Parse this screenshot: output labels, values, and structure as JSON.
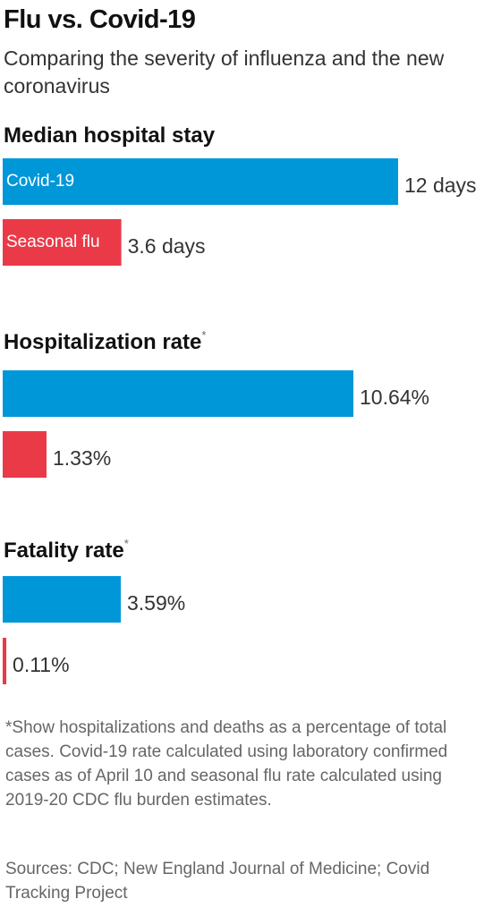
{
  "title": "Flu vs. Covid-19",
  "subtitle": "Comparing the severity of influenza and the new coronavirus",
  "footnote": "*Show hospitalizations and deaths as a percentage of total cases. Covid-19 rate calculated using laboratory confirmed cases as of April 10 and seasonal flu rate calculated using 2019-20 CDC flu burden estimates.",
  "sources": "Sources: CDC; New England Journal of Medicine; Covid Tracking Project",
  "colors": {
    "covid": "#0097d9",
    "flu": "#ea3a48"
  },
  "chart_data": [
    {
      "type": "bar",
      "orientation": "horizontal",
      "title": "Median hospital stay",
      "title_marker": "",
      "categories": [
        "Covid-19",
        "Seasonal flu"
      ],
      "category_labels_shown": true,
      "values": [
        12,
        3.6
      ],
      "value_labels": [
        "12 days",
        "3.6 days"
      ],
      "unit": "days"
    },
    {
      "type": "bar",
      "orientation": "horizontal",
      "title": "Hospitalization rate",
      "title_marker": "*",
      "categories": [
        "Covid-19",
        "Seasonal flu"
      ],
      "category_labels_shown": false,
      "values": [
        10.64,
        1.33
      ],
      "value_labels": [
        "10.64%",
        "1.33%"
      ],
      "unit": "%"
    },
    {
      "type": "bar",
      "orientation": "horizontal",
      "title": "Fatality rate",
      "title_marker": "*",
      "categories": [
        "Covid-19",
        "Seasonal flu"
      ],
      "category_labels_shown": false,
      "values": [
        3.59,
        0.11
      ],
      "value_labels": [
        "3.59%",
        "0.11%"
      ],
      "unit": "%"
    }
  ]
}
